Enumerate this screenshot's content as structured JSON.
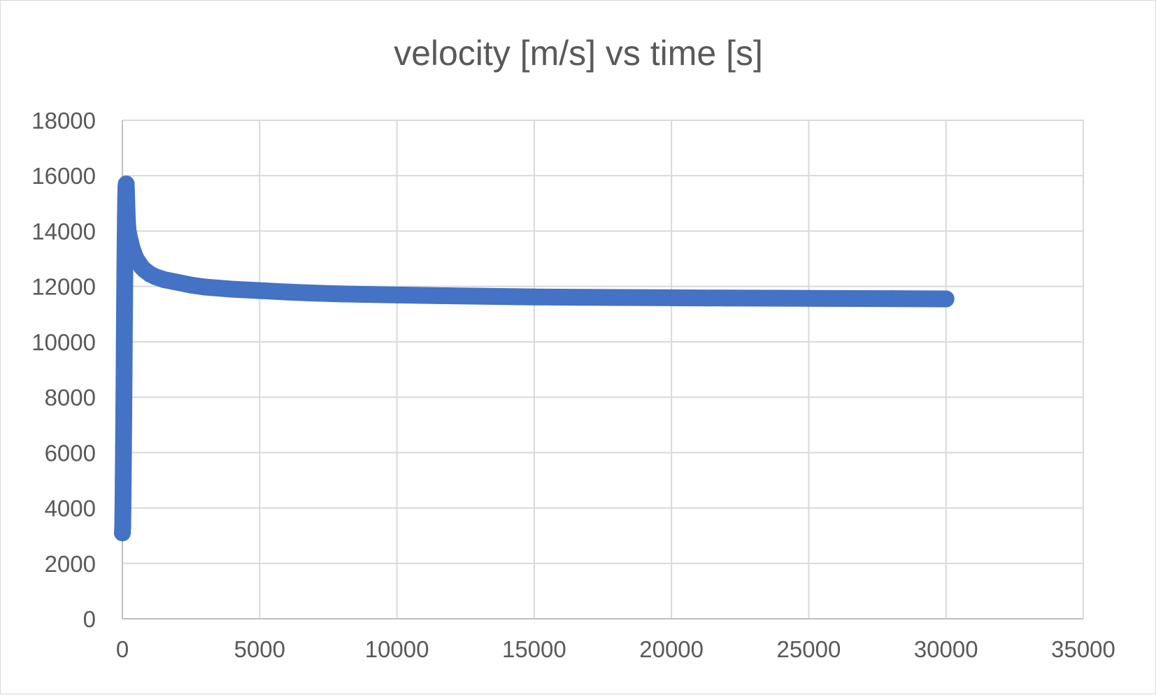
{
  "chart_data": {
    "type": "scatter",
    "title": "velocity [m/s] vs time [s]",
    "xlabel": "",
    "ylabel": "",
    "xlim": [
      0,
      35000
    ],
    "ylim": [
      0,
      18000
    ],
    "x_ticks": [
      "0",
      "5000",
      "10000",
      "15000",
      "20000",
      "25000",
      "30000",
      "35000"
    ],
    "y_ticks": [
      "0",
      "2000",
      "4000",
      "6000",
      "8000",
      "10000",
      "12000",
      "14000",
      "16000",
      "18000"
    ],
    "grid": true,
    "legend": "none",
    "colors": {
      "series": "#4472c4",
      "grid": "#d9d9d9",
      "text": "#595959"
    },
    "series": [
      {
        "x": [
          0,
          10,
          20,
          30,
          40,
          50,
          60,
          70,
          80,
          90,
          100,
          110,
          120,
          130,
          140,
          150,
          160,
          170,
          180,
          190,
          200,
          210,
          220,
          230,
          240,
          250,
          300,
          350,
          400,
          500,
          600,
          700,
          800,
          1000,
          1200,
          1500,
          2000,
          2500,
          3000,
          4000,
          5000,
          6000,
          7000,
          8000,
          10000,
          12000,
          15000,
          18000,
          20000,
          22000,
          25000,
          28000,
          30000
        ],
        "y": [
          3100,
          3300,
          4000,
          5000,
          6200,
          7400,
          8700,
          10000,
          11300,
          12500,
          13600,
          14500,
          15200,
          15600,
          15700,
          15400,
          15000,
          14700,
          14450,
          14250,
          14100,
          14000,
          13950,
          13900,
          13850,
          13800,
          13600,
          13400,
          13250,
          13000,
          12850,
          12700,
          12600,
          12450,
          12350,
          12250,
          12150,
          12050,
          11980,
          11900,
          11850,
          11800,
          11760,
          11730,
          11690,
          11660,
          11620,
          11600,
          11590,
          11580,
          11570,
          11560,
          11550
        ]
      }
    ]
  }
}
